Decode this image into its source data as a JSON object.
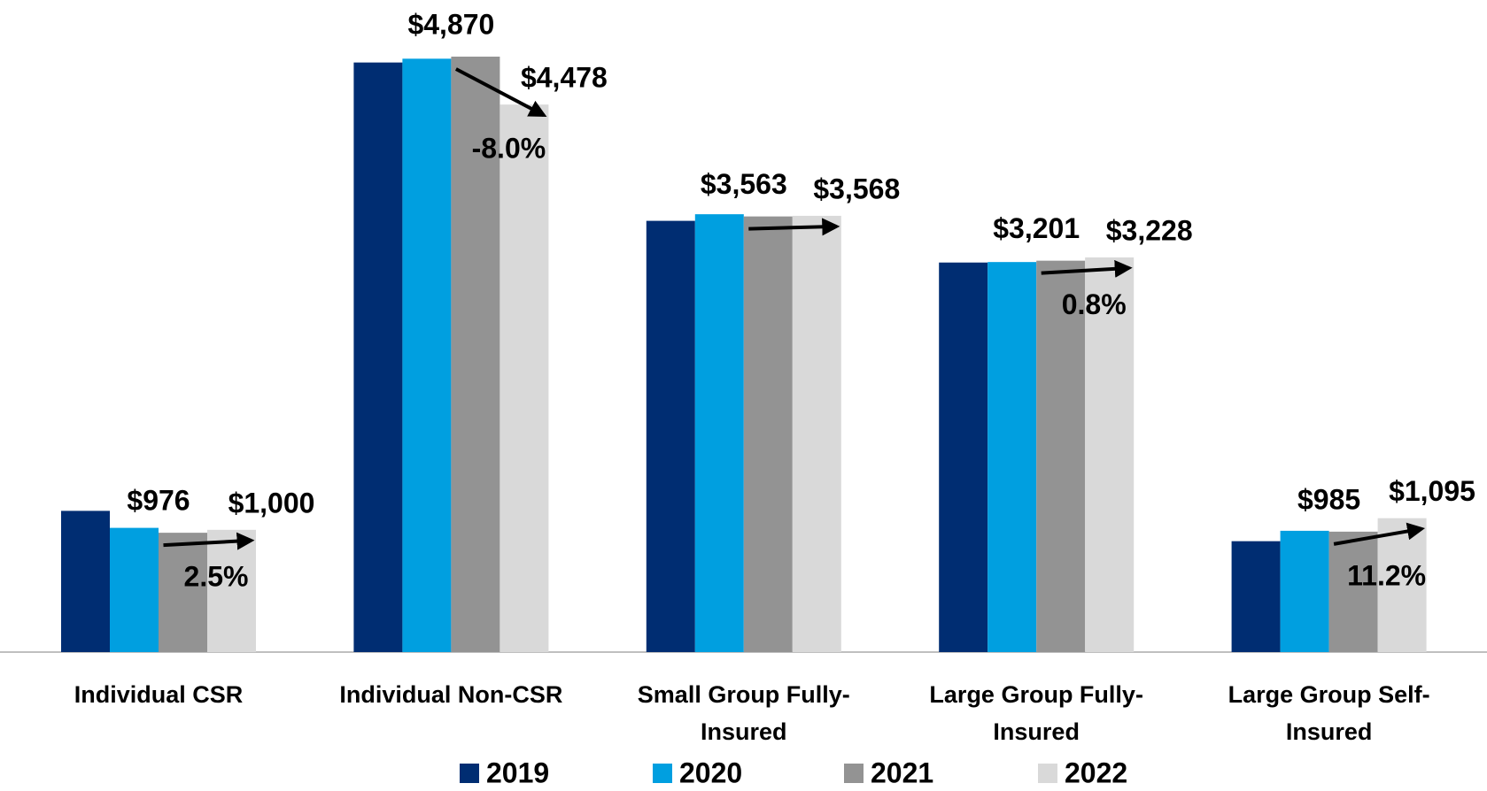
{
  "chart_data": {
    "type": "bar",
    "categories": [
      "Individual CSR",
      "Individual Non-CSR",
      "Small Group Fully-Insured",
      "Large Group Fully-Insured",
      "Large Group Self-Insured"
    ],
    "series": [
      {
        "name": "2019",
        "color": "#002d72",
        "values": [
          1155,
          4822,
          3527,
          3186,
          907
        ]
      },
      {
        "name": "2020",
        "color": "#009fe0",
        "values": [
          1016,
          4853,
          3581,
          3190,
          992
        ]
      },
      {
        "name": "2021",
        "color": "#939393",
        "values": [
          976,
          4870,
          3563,
          3201,
          985
        ],
        "value_labels": [
          "$976",
          "$4,870",
          "$3,563",
          "$3,201",
          "$985"
        ]
      },
      {
        "name": "2022",
        "color": "#d9d9d9",
        "values": [
          1000,
          4478,
          3568,
          3228,
          1095
        ],
        "value_labels": [
          "$1,000",
          "$4,478",
          "$3,568",
          "$3,228",
          "$1,095"
        ]
      }
    ],
    "changes": [
      2.5,
      -8.0,
      null,
      0.8,
      11.2
    ],
    "change_labels": [
      "2.5%",
      "-8.0%",
      null,
      "0.8%",
      "11.2%"
    ],
    "legend": "bottom",
    "grid": false
  }
}
